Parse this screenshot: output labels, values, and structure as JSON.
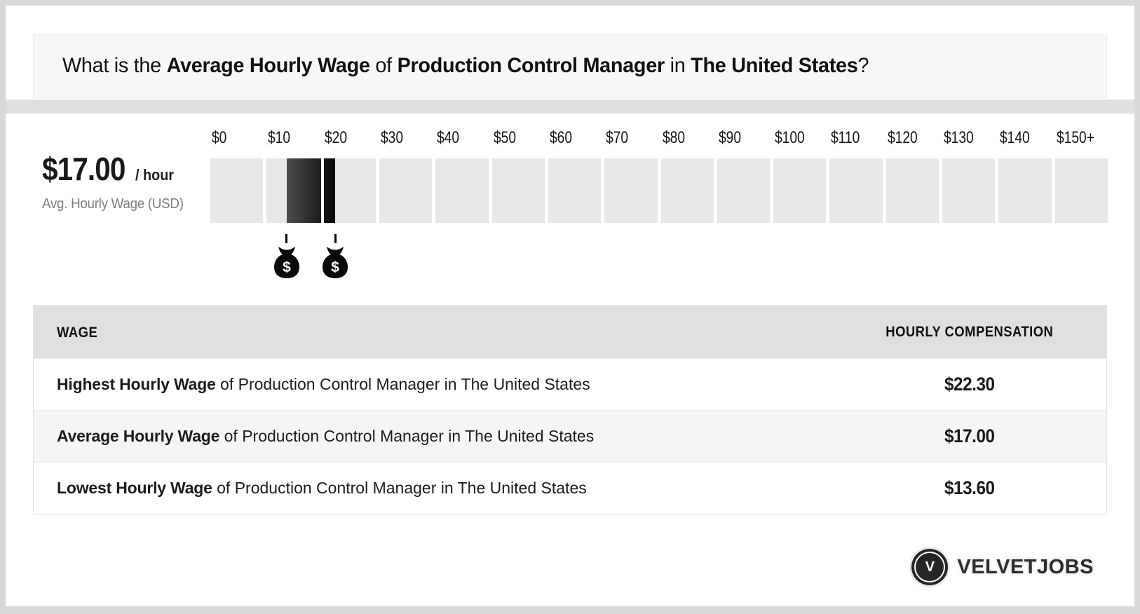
{
  "header": {
    "q1": "What is the ",
    "q2": "Average Hourly Wage",
    "q3": " of ",
    "q4": "Production Control Manager",
    "q5": " in ",
    "q6": "The United States",
    "q7": "?"
  },
  "chart_data": {
    "type": "bar",
    "subtype": "hourly-wage-range",
    "title": "Average Hourly Wage of Production Control Manager in The United States",
    "unit": "USD per hour",
    "axis": {
      "orientation": "horizontal",
      "range": [
        0,
        160
      ],
      "tick_interval": 10,
      "tick_labels": [
        "$0",
        "$10",
        "$20",
        "$30",
        "$40",
        "$50",
        "$60",
        "$70",
        "$80",
        "$90",
        "$100",
        "$110",
        "$120",
        "$130",
        "$140",
        "$150+"
      ]
    },
    "average": 17.0,
    "range": {
      "low": 13.6,
      "high": 22.3
    },
    "bar_divider_value": 20,
    "marker_symbol": "$",
    "labels": {
      "average_display": "$17.00",
      "per": "/ hour",
      "caption": "Avg. Hourly Wage (USD)",
      "low_display": "$13.60",
      "high_display": "$22.30"
    }
  },
  "table": {
    "headers": {
      "wage": "WAGE",
      "compensation": "HOURLY COMPENSATION"
    },
    "rows": [
      {
        "bold": "Highest Hourly Wage",
        "rest": " of Production Control Manager in The United States",
        "value": "$22.30"
      },
      {
        "bold": "Average Hourly Wage",
        "rest": " of Production Control Manager in The United States",
        "value": "$17.00"
      },
      {
        "bold": "Lowest Hourly Wage",
        "rest": " of Production Control Manager in The United States",
        "value": "$13.60"
      }
    ]
  },
  "footer": {
    "logo_initial": "V",
    "brand": "VELVETJOBS"
  },
  "colors": {
    "frame": "#d9d9d9",
    "header_bg": "#f7f7f7",
    "divider_band": "#dfdfdf",
    "scale_cell": "#e7e7e7",
    "bar_gradient_start": "#4e4e4e",
    "bar_gradient_end": "#050505",
    "table_header_bg": "#e0e0e0",
    "row_alt_bg": "#f5f5f5",
    "caption_gray": "#7d7d7d",
    "logo_bg": "#262626"
  }
}
